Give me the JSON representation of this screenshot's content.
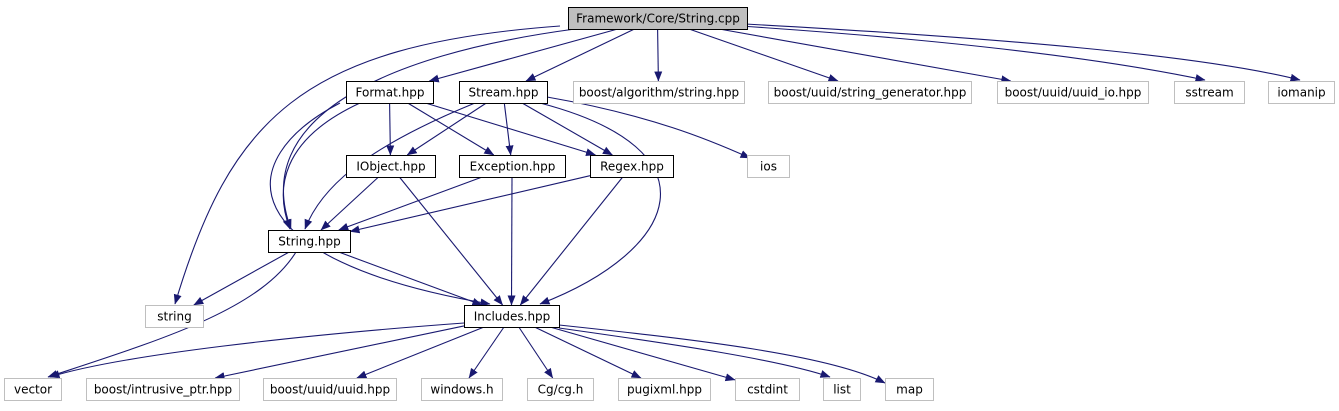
{
  "colors": {
    "edge": "#191970",
    "root_fill": "#bfbfbf",
    "internal_border": "#000000",
    "external_border": "#bfbfbf",
    "node_fill": "#ffffff",
    "text": "#000000"
  },
  "nodes": [
    {
      "id": "root",
      "label": "Framework/Core/String.cpp",
      "kind": "root"
    },
    {
      "id": "format",
      "label": "Format.hpp",
      "kind": "internal"
    },
    {
      "id": "stream",
      "label": "Stream.hpp",
      "kind": "internal"
    },
    {
      "id": "boost_alg",
      "label": "boost/algorithm/string.hpp",
      "kind": "external"
    },
    {
      "id": "boost_uuid_gen",
      "label": "boost/uuid/string_generator.hpp",
      "kind": "external"
    },
    {
      "id": "boost_uuid_io",
      "label": "boost/uuid/uuid_io.hpp",
      "kind": "external"
    },
    {
      "id": "sstream",
      "label": "sstream",
      "kind": "external"
    },
    {
      "id": "iomanip",
      "label": "iomanip",
      "kind": "external"
    },
    {
      "id": "iobject",
      "label": "IObject.hpp",
      "kind": "internal"
    },
    {
      "id": "exception",
      "label": "Exception.hpp",
      "kind": "internal"
    },
    {
      "id": "regex",
      "label": "Regex.hpp",
      "kind": "internal"
    },
    {
      "id": "ios",
      "label": "ios",
      "kind": "external"
    },
    {
      "id": "stringhpp",
      "label": "String.hpp",
      "kind": "internal"
    },
    {
      "id": "string",
      "label": "string",
      "kind": "external"
    },
    {
      "id": "includes",
      "label": "Includes.hpp",
      "kind": "internal"
    },
    {
      "id": "vector",
      "label": "vector",
      "kind": "external"
    },
    {
      "id": "intrusive",
      "label": "boost/intrusive_ptr.hpp",
      "kind": "external"
    },
    {
      "id": "uuid",
      "label": "boost/uuid/uuid.hpp",
      "kind": "external"
    },
    {
      "id": "windows",
      "label": "windows.h",
      "kind": "external"
    },
    {
      "id": "cg",
      "label": "Cg/cg.h",
      "kind": "external"
    },
    {
      "id": "pugixml",
      "label": "pugixml.hpp",
      "kind": "external"
    },
    {
      "id": "cstdint",
      "label": "cstdint",
      "kind": "external"
    },
    {
      "id": "list",
      "label": "list",
      "kind": "external"
    },
    {
      "id": "map",
      "label": "map",
      "kind": "external"
    }
  ],
  "edges": [
    {
      "from": "root",
      "to": "format"
    },
    {
      "from": "root",
      "to": "stream"
    },
    {
      "from": "root",
      "to": "boost_alg"
    },
    {
      "from": "root",
      "to": "boost_uuid_gen"
    },
    {
      "from": "root",
      "to": "boost_uuid_io"
    },
    {
      "from": "root",
      "to": "sstream"
    },
    {
      "from": "root",
      "to": "iomanip"
    },
    {
      "from": "root",
      "to": "string"
    },
    {
      "from": "root",
      "to": "stringhpp"
    },
    {
      "from": "format",
      "to": "iobject"
    },
    {
      "from": "format",
      "to": "exception"
    },
    {
      "from": "format",
      "to": "regex"
    },
    {
      "from": "format",
      "to": "stringhpp"
    },
    {
      "from": "format",
      "to": "includes"
    },
    {
      "from": "stream",
      "to": "iobject"
    },
    {
      "from": "stream",
      "to": "exception"
    },
    {
      "from": "stream",
      "to": "regex"
    },
    {
      "from": "stream",
      "to": "ios"
    },
    {
      "from": "stream",
      "to": "stringhpp"
    },
    {
      "from": "stream",
      "to": "includes"
    },
    {
      "from": "iobject",
      "to": "stringhpp"
    },
    {
      "from": "iobject",
      "to": "includes"
    },
    {
      "from": "exception",
      "to": "stringhpp"
    },
    {
      "from": "exception",
      "to": "includes"
    },
    {
      "from": "regex",
      "to": "stringhpp"
    },
    {
      "from": "regex",
      "to": "includes"
    },
    {
      "from": "stringhpp",
      "to": "string"
    },
    {
      "from": "stringhpp",
      "to": "includes"
    },
    {
      "from": "stringhpp",
      "to": "vector"
    },
    {
      "from": "includes",
      "to": "vector"
    },
    {
      "from": "includes",
      "to": "intrusive"
    },
    {
      "from": "includes",
      "to": "uuid"
    },
    {
      "from": "includes",
      "to": "windows"
    },
    {
      "from": "includes",
      "to": "cg"
    },
    {
      "from": "includes",
      "to": "pugixml"
    },
    {
      "from": "includes",
      "to": "cstdint"
    },
    {
      "from": "includes",
      "to": "list"
    },
    {
      "from": "includes",
      "to": "map"
    }
  ]
}
